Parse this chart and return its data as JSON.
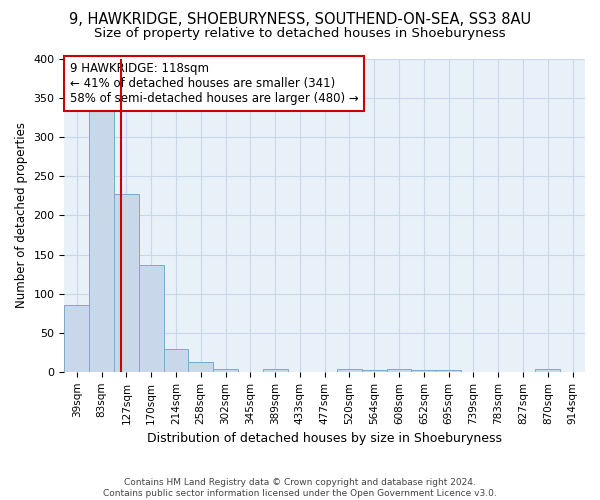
{
  "title1": "9, HAWKRIDGE, SHOEBURYNESS, SOUTHEND-ON-SEA, SS3 8AU",
  "title2": "Size of property relative to detached houses in Shoeburyness",
  "xlabel": "Distribution of detached houses by size in Shoeburyness",
  "ylabel": "Number of detached properties",
  "footer": "Contains HM Land Registry data © Crown copyright and database right 2024.\nContains public sector information licensed under the Open Government Licence v3.0.",
  "categories": [
    "39sqm",
    "83sqm",
    "127sqm",
    "170sqm",
    "214sqm",
    "258sqm",
    "302sqm",
    "345sqm",
    "389sqm",
    "433sqm",
    "477sqm",
    "520sqm",
    "564sqm",
    "608sqm",
    "652sqm",
    "695sqm",
    "739sqm",
    "783sqm",
    "827sqm",
    "870sqm",
    "914sqm"
  ],
  "values": [
    85,
    333,
    228,
    137,
    29,
    12,
    4,
    0,
    3,
    0,
    0,
    4,
    2,
    3,
    2,
    2,
    0,
    0,
    0,
    3,
    0
  ],
  "bar_color": "#c8d8ea",
  "bar_edge_color": "#7aaad0",
  "highlight_line_color": "#cc0000",
  "annotation_text": "9 HAWKRIDGE: 118sqm\n← 41% of detached houses are smaller (341)\n58% of semi-detached houses are larger (480) →",
  "annotation_box_color": "#cc0000",
  "ylim": [
    0,
    400
  ],
  "yticks": [
    0,
    50,
    100,
    150,
    200,
    250,
    300,
    350,
    400
  ],
  "grid_color": "#c8d8ea",
  "background_color": "#e8f0f8",
  "title_fontsize": 10.5,
  "subtitle_fontsize": 9.5
}
